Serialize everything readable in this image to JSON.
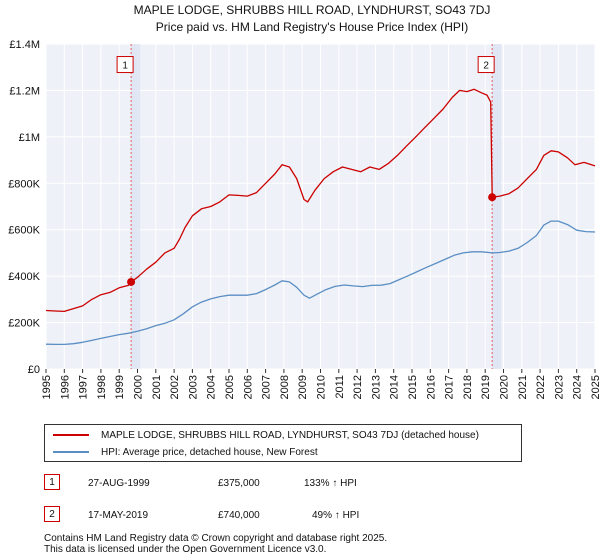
{
  "chart_data": {
    "type": "line",
    "title": "MAPLE LODGE, SHRUBBS HILL ROAD, LYNDHURST, SO43 7DJ",
    "subtitle": "Price paid vs. HM Land Registry's House Price Index (HPI)",
    "xlabel": "",
    "ylabel": "",
    "xlim": [
      1995,
      2025
    ],
    "ylim": [
      0,
      1400000
    ],
    "x_ticks": [
      "1995",
      "1996",
      "1997",
      "1998",
      "1999",
      "2000",
      "2001",
      "2002",
      "2003",
      "2004",
      "2005",
      "2006",
      "2007",
      "2008",
      "2009",
      "2010",
      "2011",
      "2012",
      "2013",
      "2014",
      "2015",
      "2016",
      "2017",
      "2018",
      "2019",
      "2020",
      "2021",
      "2022",
      "2023",
      "2024",
      "2025"
    ],
    "y_ticks": [
      {
        "value": 0,
        "label": "£0"
      },
      {
        "value": 200000,
        "label": "£200K"
      },
      {
        "value": 400000,
        "label": "£400K"
      },
      {
        "value": 600000,
        "label": "£600K"
      },
      {
        "value": 800000,
        "label": "£800K"
      },
      {
        "value": 1000000,
        "label": "£1M"
      },
      {
        "value": 1200000,
        "label": "£1.2M"
      },
      {
        "value": 1400000,
        "label": "£1.4M"
      }
    ],
    "grid": true,
    "series": [
      {
        "name": "MAPLE LODGE, SHRUBBS HILL ROAD, LYNDHURST, SO43 7DJ (detached house)",
        "color": "#cc0000",
        "points": [
          [
            1995.0,
            252000
          ],
          [
            1995.5,
            250000
          ],
          [
            1996.0,
            248000
          ],
          [
            1996.5,
            260000
          ],
          [
            1997.0,
            272000
          ],
          [
            1997.5,
            300000
          ],
          [
            1998.0,
            320000
          ],
          [
            1998.5,
            330000
          ],
          [
            1999.0,
            350000
          ],
          [
            1999.5,
            360000
          ],
          [
            1999.65,
            375000
          ],
          [
            2000.0,
            395000
          ],
          [
            2000.5,
            430000
          ],
          [
            2001.0,
            460000
          ],
          [
            2001.5,
            500000
          ],
          [
            2002.0,
            520000
          ],
          [
            2002.3,
            560000
          ],
          [
            2002.6,
            610000
          ],
          [
            2003.0,
            660000
          ],
          [
            2003.5,
            690000
          ],
          [
            2004.0,
            700000
          ],
          [
            2004.5,
            720000
          ],
          [
            2005.0,
            750000
          ],
          [
            2005.5,
            748000
          ],
          [
            2006.0,
            745000
          ],
          [
            2006.5,
            760000
          ],
          [
            2007.0,
            800000
          ],
          [
            2007.5,
            840000
          ],
          [
            2007.9,
            880000
          ],
          [
            2008.3,
            870000
          ],
          [
            2008.7,
            820000
          ],
          [
            2009.1,
            730000
          ],
          [
            2009.3,
            720000
          ],
          [
            2009.7,
            770000
          ],
          [
            2010.2,
            820000
          ],
          [
            2010.7,
            850000
          ],
          [
            2011.2,
            870000
          ],
          [
            2011.7,
            860000
          ],
          [
            2012.2,
            850000
          ],
          [
            2012.7,
            870000
          ],
          [
            2013.2,
            860000
          ],
          [
            2013.7,
            885000
          ],
          [
            2014.2,
            920000
          ],
          [
            2014.7,
            960000
          ],
          [
            2015.2,
            1000000
          ],
          [
            2015.7,
            1040000
          ],
          [
            2016.2,
            1080000
          ],
          [
            2016.7,
            1120000
          ],
          [
            2017.2,
            1170000
          ],
          [
            2017.6,
            1200000
          ],
          [
            2018.0,
            1195000
          ],
          [
            2018.4,
            1205000
          ],
          [
            2018.8,
            1190000
          ],
          [
            2019.1,
            1180000
          ],
          [
            2019.3,
            1150000
          ],
          [
            2019.38,
            740000
          ],
          [
            2019.8,
            745000
          ],
          [
            2020.3,
            755000
          ],
          [
            2020.8,
            780000
          ],
          [
            2021.3,
            820000
          ],
          [
            2021.8,
            860000
          ],
          [
            2022.2,
            920000
          ],
          [
            2022.6,
            940000
          ],
          [
            2023.0,
            935000
          ],
          [
            2023.5,
            910000
          ],
          [
            2023.9,
            880000
          ],
          [
            2024.4,
            890000
          ],
          [
            2025.0,
            875000
          ]
        ]
      },
      {
        "name": "HPI: Average price, detached house, New Forest",
        "color": "#5b8ec4",
        "points": [
          [
            1995.0,
            107000
          ],
          [
            1995.5,
            106000
          ],
          [
            1996.0,
            106000
          ],
          [
            1996.5,
            109000
          ],
          [
            1997.0,
            115000
          ],
          [
            1997.5,
            123000
          ],
          [
            1998.0,
            132000
          ],
          [
            1998.5,
            140000
          ],
          [
            1999.0,
            148000
          ],
          [
            1999.5,
            154000
          ],
          [
            2000.0,
            163000
          ],
          [
            2000.5,
            173000
          ],
          [
            2001.0,
            187000
          ],
          [
            2001.5,
            197000
          ],
          [
            2002.0,
            212000
          ],
          [
            2002.5,
            238000
          ],
          [
            2003.0,
            268000
          ],
          [
            2003.5,
            288000
          ],
          [
            2004.0,
            302000
          ],
          [
            2004.5,
            312000
          ],
          [
            2005.0,
            318000
          ],
          [
            2005.5,
            318000
          ],
          [
            2006.0,
            318000
          ],
          [
            2006.5,
            325000
          ],
          [
            2007.0,
            342000
          ],
          [
            2007.5,
            362000
          ],
          [
            2007.9,
            380000
          ],
          [
            2008.3,
            375000
          ],
          [
            2008.7,
            352000
          ],
          [
            2009.1,
            318000
          ],
          [
            2009.4,
            305000
          ],
          [
            2009.8,
            322000
          ],
          [
            2010.3,
            342000
          ],
          [
            2010.8,
            356000
          ],
          [
            2011.3,
            362000
          ],
          [
            2011.8,
            358000
          ],
          [
            2012.3,
            355000
          ],
          [
            2012.8,
            360000
          ],
          [
            2013.3,
            361000
          ],
          [
            2013.8,
            368000
          ],
          [
            2014.3,
            385000
          ],
          [
            2014.8,
            402000
          ],
          [
            2015.3,
            420000
          ],
          [
            2015.8,
            438000
          ],
          [
            2016.3,
            455000
          ],
          [
            2016.8,
            472000
          ],
          [
            2017.3,
            490000
          ],
          [
            2017.8,
            500000
          ],
          [
            2018.3,
            505000
          ],
          [
            2018.8,
            505000
          ],
          [
            2019.4,
            500000
          ],
          [
            2019.8,
            502000
          ],
          [
            2020.3,
            508000
          ],
          [
            2020.8,
            520000
          ],
          [
            2021.3,
            545000
          ],
          [
            2021.8,
            575000
          ],
          [
            2022.2,
            620000
          ],
          [
            2022.6,
            637000
          ],
          [
            2023.0,
            637000
          ],
          [
            2023.5,
            622000
          ],
          [
            2024.0,
            598000
          ],
          [
            2024.5,
            592000
          ],
          [
            2025.0,
            590000
          ]
        ]
      }
    ],
    "markers": [
      {
        "label": "1",
        "x": 1999.65,
        "value": 375000,
        "box_value": 1290000
      },
      {
        "label": "2",
        "x": 2019.38,
        "value": 740000,
        "box_value": 1290000
      }
    ]
  },
  "legend": {
    "items": [
      {
        "label": "MAPLE LODGE, SHRUBBS HILL ROAD, LYNDHURST, SO43 7DJ (detached house)",
        "color": "#cc0000"
      },
      {
        "label": "HPI: Average price, detached house, New Forest",
        "color": "#5b8ec4"
      }
    ]
  },
  "annotations": [
    {
      "num": "1",
      "date": "27-AUG-1999",
      "price": "£375,000",
      "hpi": "133% ↑ HPI"
    },
    {
      "num": "2",
      "date": "17-MAY-2019",
      "price": "£740,000",
      "hpi": "49% ↑ HPI"
    }
  ],
  "footer": {
    "line1": "Contains HM Land Registry data © Crown copyright and database right 2025.",
    "line2": "This data is licensed under the Open Government Licence v3.0."
  }
}
